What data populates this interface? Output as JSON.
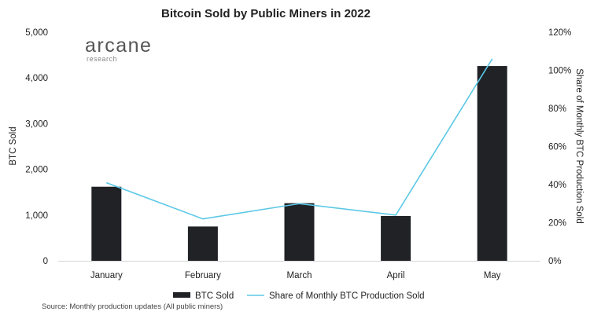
{
  "chart_data": {
    "type": "bar",
    "title": "Bitcoin Sold by Public Miners in 2022",
    "categories": [
      "January",
      "February",
      "March",
      "April",
      "May"
    ],
    "series": [
      {
        "name": "BTC Sold",
        "type": "bar",
        "axis": "left",
        "color": "#202226",
        "values": [
          1620,
          750,
          1260,
          980,
          4260
        ]
      },
      {
        "name": "Share of Monthly BTC Production Sold",
        "type": "line",
        "axis": "right",
        "color": "#5bc8e6",
        "values": [
          41,
          22,
          30,
          24,
          106
        ]
      }
    ],
    "ylabel": "BTC Sold",
    "y2label": "Share of Monthly BTC Production Sold",
    "ylim": [
      0,
      5000
    ],
    "y2lim": [
      0,
      120
    ],
    "yticks": [
      "0",
      "1,000",
      "2,000",
      "3,000",
      "4,000",
      "5,000"
    ],
    "y2ticks": [
      "0%",
      "20%",
      "40%",
      "60%",
      "80%",
      "100%",
      "120%"
    ],
    "legend": "bottom",
    "grid": false
  },
  "logo": {
    "name": "arcane",
    "sub": "research"
  },
  "source": "Source: Monthly production updates (All public miners)"
}
